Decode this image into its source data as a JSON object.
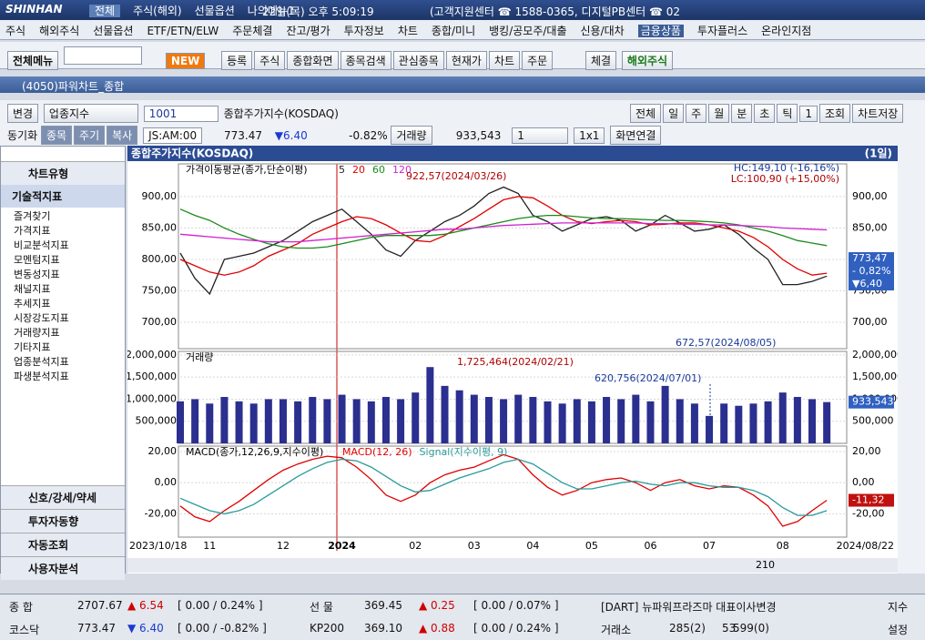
{
  "header": {
    "brand": "SHINHAN",
    "tabs": [
      "전체",
      "주식(해외)",
      "선물옵션",
      "나의메뉴1"
    ],
    "datetime": "22일(목) 오후 5:09:19",
    "contact": "(고객지원센터 ☎ 1588-0365, 디지털PB센터 ☎ 02"
  },
  "menu": [
    "주식",
    "해외주식",
    "선물옵션",
    "ETF/ETN/ELW",
    "주문체결",
    "잔고/평가",
    "투자정보",
    "차트",
    "종합/미니",
    "뱅킹/공모주/대출",
    "신용/대차",
    "금융상품",
    "투자플러스",
    "온라인지점"
  ],
  "toolbar": {
    "all_menu": "전체메뉴",
    "new": "NEW",
    "items": [
      "등록",
      "주식",
      "종합화면",
      "종목검색",
      "관심종목",
      "현재가",
      "차트",
      "주문"
    ],
    "execution": "체결",
    "overseas": "해외주식"
  },
  "window": {
    "title": "(4050)파워차트_종합"
  },
  "controls": {
    "change": "변경",
    "market": "업종지수",
    "code": "1001",
    "name": "종합주가지수(KOSDAQ)",
    "period_buttons": [
      "전체",
      "일",
      "주",
      "월",
      "분",
      "초",
      "틱",
      "1",
      "조회",
      "차트저장"
    ],
    "sync": "동기화",
    "tabs": [
      "종목",
      "주기",
      "복사"
    ],
    "time": "JS:AM:00",
    "price": "773.47",
    "change_value": "▼6.40",
    "change_pct": "-0.82%",
    "volume_label": "거래량",
    "volume": "933,543",
    "layout_count": "1",
    "grid": "1x1",
    "link": "화면연결"
  },
  "left_panel": {
    "chart_type": "차트유형",
    "tech": "기술적지표",
    "items": [
      "즐겨찾기",
      "가격지표",
      "비교분석지표",
      "모멘텀지표",
      "변동성지표",
      "채널지표",
      "추세지표",
      "시장강도지표",
      "거래량지표",
      "기타지표",
      "업종분석지표",
      "파생분석지표"
    ],
    "bottom": [
      "신호/강세/약세",
      "투자자동향",
      "자동조회",
      "사용자분석"
    ]
  },
  "chart_header": {
    "title": "종합주가지수(KOSDAQ)",
    "period": "(1일)"
  },
  "chart_data": [
    {
      "type": "line",
      "title": "가격이동평균(종가,단순이평)",
      "series": [
        {
          "name": "5",
          "color": "#222222",
          "values": [
            810,
            770,
            745,
            800,
            805,
            810,
            820,
            830,
            845,
            860,
            870,
            880,
            860,
            840,
            815,
            805,
            830,
            845,
            860,
            870,
            885,
            905,
            915,
            905,
            870,
            860,
            845,
            855,
            865,
            868,
            862,
            845,
            855,
            870,
            858,
            845,
            848,
            855,
            840,
            818,
            800,
            760,
            760,
            765,
            773.47
          ]
        },
        {
          "name": "20",
          "color": "#e00000",
          "values": [
            800,
            790,
            780,
            775,
            780,
            790,
            805,
            815,
            825,
            840,
            850,
            860,
            868,
            865,
            855,
            842,
            830,
            828,
            838,
            852,
            865,
            880,
            895,
            900,
            898,
            885,
            870,
            860,
            857,
            860,
            862,
            860,
            855,
            856,
            858,
            858,
            855,
            850,
            845,
            835,
            820,
            800,
            785,
            775,
            778
          ]
        },
        {
          "name": "60",
          "color": "#1a8a1a",
          "values": [
            880,
            870,
            862,
            850,
            840,
            832,
            825,
            820,
            818,
            818,
            820,
            825,
            830,
            835,
            838,
            838,
            838,
            838,
            840,
            845,
            850,
            855,
            860,
            865,
            868,
            870,
            870,
            868,
            866,
            865,
            865,
            864,
            863,
            862,
            862,
            861,
            860,
            858,
            855,
            850,
            845,
            838,
            830,
            826,
            822
          ]
        },
        {
          "name": "120",
          "color": "#d020d0",
          "values": [
            840,
            838,
            836,
            834,
            832,
            830,
            828,
            828,
            828,
            830,
            832,
            834,
            836,
            838,
            840,
            842,
            844,
            846,
            848,
            848,
            850,
            852,
            854,
            855,
            856,
            857,
            858,
            858,
            858,
            858,
            858,
            858,
            857,
            857,
            856,
            856,
            855,
            855,
            854,
            853,
            852,
            850,
            849,
            848,
            847
          ]
        }
      ],
      "ylim": [
        658,
        952
      ],
      "yticks": [
        {
          "value": 700,
          "label": "700,00"
        },
        {
          "value": 750,
          "label": "750,00"
        },
        {
          "value": 800,
          "label": "800,00"
        },
        {
          "value": 850,
          "label": "850,00"
        },
        {
          "value": 900,
          "label": "900,00"
        }
      ],
      "annotations": {
        "high": "922,57(2024/03/26)",
        "low": "672,57(2024/08/05)",
        "hc": "HC:149,10 (-16,16%)",
        "lc": "LC:100,90 (+15,00%)"
      },
      "value_tags": [
        "773,47",
        "- 0,82%",
        "▼6,40"
      ]
    },
    {
      "type": "bar",
      "title": "거래량",
      "color": "#2b2f8f",
      "values": [
        950000,
        1000000,
        900000,
        1050000,
        950000,
        900000,
        1000000,
        1000000,
        950000,
        1050000,
        1000000,
        1100000,
        1000000,
        950000,
        1050000,
        1000000,
        1150000,
        1725464,
        1300000,
        1200000,
        1100000,
        1050000,
        1000000,
        1100000,
        1050000,
        950000,
        900000,
        1000000,
        950000,
        1050000,
        1000000,
        1100000,
        950000,
        1300000,
        1000000,
        900000,
        620756,
        900000,
        850000,
        900000,
        950000,
        1150000,
        1050000,
        1000000,
        933543
      ],
      "ylim": [
        0,
        2080000
      ],
      "yticks": [
        {
          "value": 500000,
          "label": "500,000"
        },
        {
          "value": 1000000,
          "label": "1,000,000"
        },
        {
          "value": 1500000,
          "label": "1,500,000"
        },
        {
          "value": 2000000,
          "label": "2,000,000"
        }
      ],
      "annotations": {
        "high": "1,725,464(2024/02/21)",
        "low": "620,756(2024/07/01)"
      },
      "value_tags": [
        "933,543"
      ]
    },
    {
      "type": "line",
      "title": "MACD(종가,12,26,9,지수이평)",
      "series": [
        {
          "name": "MACD(12, 26)",
          "color": "#e00000",
          "values": [
            -15,
            -22,
            -25,
            -18,
            -12,
            -5,
            2,
            8,
            12,
            15,
            17,
            16,
            10,
            2,
            -8,
            -12,
            -8,
            0,
            5,
            8,
            10,
            14,
            18,
            15,
            5,
            -3,
            -8,
            -5,
            0,
            2,
            3,
            0,
            -5,
            0,
            2,
            -2,
            -4,
            -2,
            -3,
            -8,
            -15,
            -28,
            -25,
            -18,
            -11.32
          ]
        },
        {
          "name": "Signal(지수이평, 9)",
          "color": "#2a9a9a",
          "values": [
            -10,
            -14,
            -18,
            -20,
            -18,
            -14,
            -8,
            -2,
            4,
            9,
            13,
            15,
            14,
            10,
            4,
            -2,
            -6,
            -5,
            -1,
            3,
            6,
            9,
            13,
            15,
            12,
            6,
            0,
            -4,
            -4,
            -2,
            0,
            1,
            -1,
            -2,
            0,
            0,
            -2,
            -3,
            -3,
            -5,
            -9,
            -16,
            -21,
            -21,
            -18
          ]
        }
      ],
      "ylim": [
        -35,
        23.5
      ],
      "yticks": [
        {
          "value": -20,
          "label": "-20,00"
        },
        {
          "value": 0,
          "label": "0,00"
        },
        {
          "value": 20,
          "label": "20,00"
        }
      ],
      "value_tags": [
        "-11,32"
      ],
      "categories": [
        "2023/10/18",
        null,
        "11",
        null,
        null,
        null,
        null,
        "12",
        null,
        null,
        null,
        "2024",
        null,
        null,
        null,
        null,
        "02",
        null,
        null,
        null,
        "03",
        null,
        null,
        null,
        "04",
        null,
        null,
        null,
        "05",
        null,
        null,
        null,
        "06",
        null,
        null,
        null,
        "07",
        null,
        null,
        null,
        null,
        "08",
        null,
        null,
        "2024/08/22"
      ]
    }
  ],
  "footer": {
    "scroll_count": "210"
  },
  "status": {
    "rows": [
      [
        "종 합",
        "2707.67",
        "▲ 6.54",
        "[ 0.00  / 0.24% ]",
        "선 물",
        "369.45",
        "▲ 0.25",
        "[ 0.00  / 0.07% ]",
        "[DART] 뉴파워프라즈마 대표이사변경",
        "지수"
      ],
      [
        "코스닥",
        "773.47",
        "▼ 6.40",
        "[ 0.00  / -0.82% ]",
        "KP200",
        "369.10",
        "▲ 0.88",
        "[ 0.00  / 0.24% ]",
        "거래소",
        "285(2)",
        "53",
        "599(0)",
        "설정"
      ]
    ]
  }
}
